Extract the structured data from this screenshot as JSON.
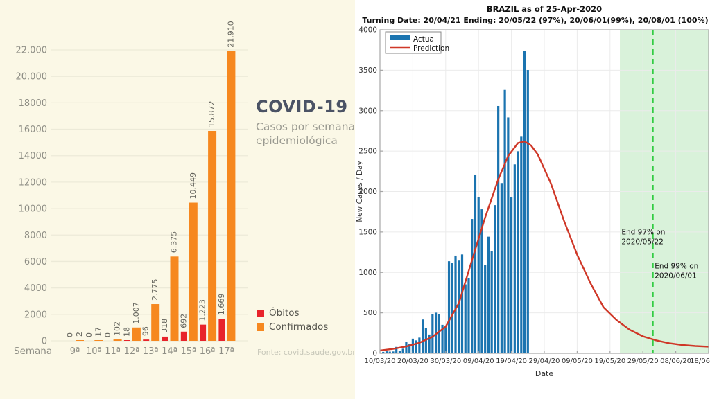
{
  "chart_data": [
    {
      "type": "bar",
      "title": "COVID-19",
      "subtitle_line1": "Casos por semana",
      "subtitle_line2": "epidemiológica",
      "source": "Fonte: covid.saude.gov.br",
      "xlabel": "Semana",
      "categories": [
        "9ª",
        "10ª",
        "11ª",
        "12ª",
        "13ª",
        "14ª",
        "15ª",
        "16ª",
        "17ª"
      ],
      "series": [
        {
          "name": "Óbitos",
          "color": "#e8232b",
          "values": [
            0,
            0,
            0,
            18,
            96,
            318,
            692,
            1223,
            1669
          ],
          "labels": [
            "0",
            "0",
            "0",
            "18",
            "96",
            "318",
            "692",
            "1.223",
            "1.669"
          ]
        },
        {
          "name": "Confirmados",
          "color": "#f6881f",
          "values": [
            2,
            17,
            102,
            1007,
            2775,
            6375,
            10449,
            15872,
            21910
          ],
          "labels": [
            "2",
            "17",
            "102",
            "1.007",
            "2.775",
            "6.375",
            "10.449",
            "15.872",
            "21.910"
          ]
        }
      ],
      "ylim": [
        0,
        22000
      ],
      "grid": true,
      "legend_position": "right-bottom",
      "y_ticks": [
        {
          "value": 22000,
          "label": "22.000"
        },
        {
          "value": 20000,
          "label": "20.000"
        },
        {
          "value": 18000,
          "label": "18000"
        },
        {
          "value": 16000,
          "label": "16000"
        },
        {
          "value": 14000,
          "label": "14000"
        },
        {
          "value": 12000,
          "label": "12000"
        },
        {
          "value": 10000,
          "label": "10000"
        },
        {
          "value": 8000,
          "label": "8000"
        },
        {
          "value": 6000,
          "label": "6000"
        },
        {
          "value": 4000,
          "label": "4000"
        },
        {
          "value": 2000,
          "label": "2000"
        },
        {
          "value": 0,
          "label": "0"
        }
      ],
      "colors": {
        "background": "#fbf8e6",
        "gridline": "#ecead8",
        "tick_text": "#8e8e85",
        "value_label": "#63635c",
        "title": "#4b5365",
        "subtitle": "#9a9a91",
        "source": "#c8c8ba"
      }
    },
    {
      "type": "bar+line",
      "title": "BRAZIL as of 25-Apr-2020",
      "subtitle": "Turning Date: 20/04/21  Ending: 20/05/22 (97%), 20/06/01(99%), 20/08/01 (100%)",
      "xlabel": "Date",
      "ylabel": "New Cases / Day",
      "ylim": [
        0,
        4000
      ],
      "grid": true,
      "legend_position": "upper-left",
      "y_ticks": [
        0,
        500,
        1000,
        1500,
        2000,
        2500,
        3000,
        3500,
        4000
      ],
      "x_ticks": [
        {
          "day": 0,
          "label": "10/03/20"
        },
        {
          "day": 10,
          "label": "20/03/20"
        },
        {
          "day": 20,
          "label": "30/03/20"
        },
        {
          "day": 30,
          "label": "09/04/20"
        },
        {
          "day": 40,
          "label": "19/04/20"
        },
        {
          "day": 50,
          "label": "29/04/20"
        },
        {
          "day": 60,
          "label": "09/05/20"
        },
        {
          "day": 70,
          "label": "19/05/20"
        },
        {
          "day": 80,
          "label": "29/05/20"
        },
        {
          "day": 90,
          "label": "08/06/20"
        },
        {
          "day": 100,
          "label": "18/06"
        }
      ],
      "actual": {
        "name": "Actual",
        "color": "#1b74b0",
        "start_date": "10/03/20",
        "values": [
          7,
          18,
          25,
          21,
          23,
          79,
          34,
          57,
          137,
          114,
          181,
          160,
          194,
          418,
          310,
          232,
          482,
          502,
          487,
          352,
          323,
          1138,
          1119,
          1208,
          1146,
          1222,
          852,
          926,
          1661,
          2210,
          1930,
          1781,
          1089,
          1442,
          1261,
          1832,
          3058,
          2105,
          3257,
          2917,
          1927,
          2336,
          2498,
          2678,
          3735,
          3503
        ]
      },
      "prediction": {
        "name": "Prediction",
        "color": "#cf3727",
        "points": [
          [
            0,
            35
          ],
          [
            4,
            55
          ],
          [
            8,
            85
          ],
          [
            12,
            130
          ],
          [
            16,
            205
          ],
          [
            20,
            330
          ],
          [
            24,
            620
          ],
          [
            28,
            1150
          ],
          [
            32,
            1680
          ],
          [
            36,
            2150
          ],
          [
            39,
            2440
          ],
          [
            42,
            2600
          ],
          [
            44,
            2620
          ],
          [
            46,
            2570
          ],
          [
            48,
            2460
          ],
          [
            52,
            2100
          ],
          [
            56,
            1640
          ],
          [
            60,
            1220
          ],
          [
            64,
            870
          ],
          [
            68,
            570
          ],
          [
            72,
            410
          ],
          [
            76,
            290
          ],
          [
            80,
            210
          ],
          [
            84,
            160
          ],
          [
            88,
            125
          ],
          [
            92,
            103
          ],
          [
            96,
            90
          ],
          [
            100,
            82
          ]
        ]
      },
      "shaded_region": {
        "color": "#d9f2da",
        "start_day": 73,
        "end_day": 100
      },
      "dashed_line": {
        "color": "#33cc44",
        "day": 83
      },
      "annotations": [
        {
          "line1": "End 97% on",
          "line2": "2020/05/22",
          "x_day": 73.5,
          "y_value": 1470
        },
        {
          "line1": "End 99% on",
          "line2": "2020/06/01",
          "x_day": 83.6,
          "y_value": 1050
        }
      ],
      "colors": {
        "background": "#ffffff",
        "gridline": "#ebebeb",
        "axis_box": "#a6a6a6",
        "tick_text": "#333333"
      }
    }
  ]
}
